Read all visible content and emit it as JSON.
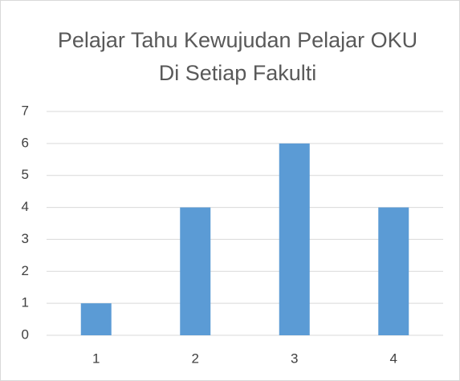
{
  "chart_data": {
    "type": "bar",
    "title": "Pelajar Tahu Kewujudan Pelajar OKU Di Setiap Fakulti",
    "categories": [
      "1",
      "2",
      "3",
      "4"
    ],
    "values": [
      1,
      4,
      6,
      4
    ],
    "color": "#5b9bd5",
    "ylim": [
      0,
      7
    ],
    "yticks": [
      0,
      1,
      2,
      3,
      4,
      5,
      6,
      7
    ],
    "grid": true
  }
}
